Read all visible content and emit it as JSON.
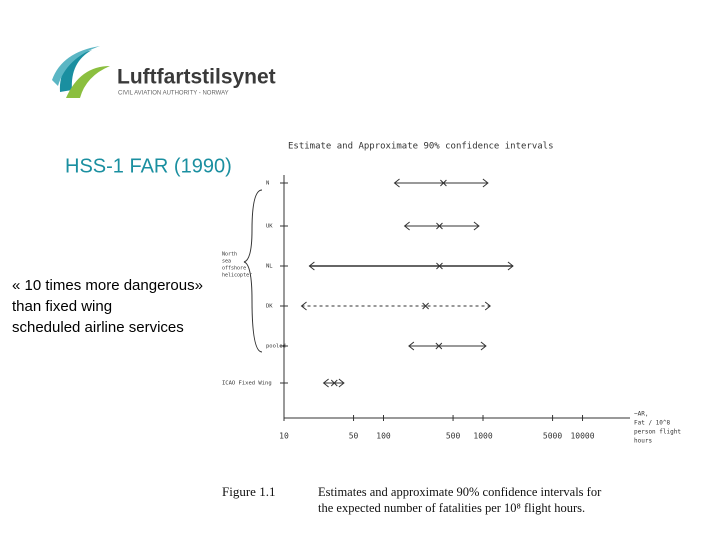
{
  "logo": {
    "name": "Luftfartstilsynet",
    "subtitle": "CIVIL AVIATION AUTHORITY - NORWAY"
  },
  "title": "HSS-1 FAR (1990)",
  "body": [
    "« 10 times more dangerous»",
    "than fixed wing",
    "scheduled airline services"
  ],
  "figure": {
    "title": "Estimate and Approximate 90% confidence intervals",
    "log_x": true,
    "xlim": [
      10,
      30000
    ],
    "xticks": [
      10,
      50,
      100,
      500,
      1000,
      5000,
      10000
    ],
    "x_label": [
      "~AR,",
      "Fat / 10^8",
      "person flight",
      "hours"
    ],
    "group_label": [
      "North",
      "sea",
      "offshore",
      "helicopter"
    ],
    "rows": [
      {
        "label": "N",
        "low": 129,
        "estimate": 400,
        "high": 1120
      },
      {
        "label": "UK",
        "low": 163,
        "estimate": 365,
        "high": 910
      },
      {
        "label": "NL",
        "low": 18,
        "estimate": 365,
        "high": 2000
      },
      {
        "label": "DK",
        "low": 15,
        "estimate": 265,
        "high": 1180
      },
      {
        "label": "pooled",
        "low": 180,
        "estimate": 360,
        "high": 1070
      },
      {
        "label": "ICAO Fixed Wing",
        "low": 25,
        "estimate": 32,
        "high": 40
      }
    ]
  },
  "caption": {
    "label": "Figure 1.1",
    "lines": [
      "Estimates and approximate 90% confidence intervals for",
      "the expected number of fatalities per 10⁸ flight hours."
    ]
  }
}
